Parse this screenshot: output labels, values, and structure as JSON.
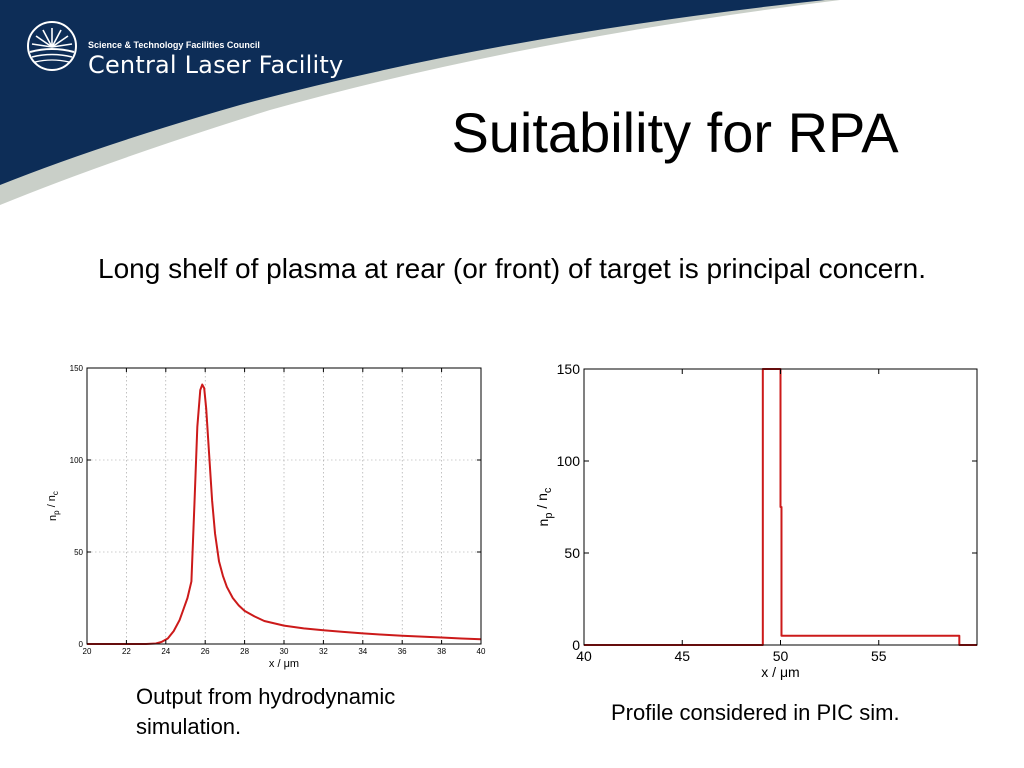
{
  "banner": {
    "council": "Science & Technology Facilities Council",
    "facility": "Central Laser Facility",
    "colors": {
      "navy": "#0d2d57",
      "grey": "#c9cfc8",
      "logo": "#ffffff"
    }
  },
  "slide": {
    "title": "Suitability for RPA",
    "body": "Long shelf of plasma at rear (or front) of target is principal concern."
  },
  "captions": {
    "hydro": "Output from hydrodynamic simulation.",
    "pic": "Profile considered in PIC sim."
  },
  "chart_data": [
    {
      "id": "hydro",
      "type": "line",
      "xlabel": "x / μm",
      "ylabel_base": "n",
      "ylabel_sub1": "p",
      "ylabel_mid": " / n",
      "ylabel_sub2": "c",
      "xlim": [
        20,
        40
      ],
      "ylim": [
        0,
        150
      ],
      "xticks": [
        20,
        22,
        24,
        26,
        28,
        30,
        32,
        34,
        36,
        38,
        40
      ],
      "yticks": [
        0,
        50,
        100,
        150
      ],
      "grid": true,
      "line_color": "#cc1a1a",
      "series": [
        {
          "x": [
            20,
            23,
            23.5,
            23.8,
            24.1,
            24.4,
            24.7,
            24.9,
            25.1,
            25.3,
            25.45,
            25.6,
            25.75,
            25.85,
            25.95,
            26.05,
            26.2,
            26.35,
            26.5,
            26.7,
            26.9,
            27.1,
            27.4,
            27.7,
            28,
            28.5,
            29,
            30,
            31,
            32,
            33,
            34,
            35,
            36,
            37,
            38,
            39,
            40
          ],
          "y": [
            0,
            0,
            0.3,
            1.2,
            3,
            7,
            13,
            19,
            25,
            34,
            75,
            118,
            138,
            141,
            139,
            128,
            103,
            78,
            60,
            45,
            37,
            31,
            25,
            21,
            18,
            15,
            12.5,
            10,
            8.5,
            7.5,
            6.6,
            5.8,
            5.1,
            4.5,
            4,
            3.5,
            3,
            2.6
          ]
        }
      ]
    },
    {
      "id": "pic",
      "type": "line",
      "xlabel": "x / μm",
      "ylabel_base": "n",
      "ylabel_sub1": "p",
      "ylabel_mid": " / n",
      "ylabel_sub2": "c",
      "xlim": [
        40,
        60
      ],
      "ylim": [
        0,
        150
      ],
      "xticks": [
        40,
        45,
        50,
        55
      ],
      "yticks": [
        0,
        50,
        100,
        150
      ],
      "grid": false,
      "line_color": "#cc1a1a",
      "series": [
        {
          "x": [
            40,
            49.1,
            49.1,
            49.15,
            49.9,
            50,
            50,
            50.05,
            50.05,
            59.1,
            59.1,
            60
          ],
          "y": [
            0,
            0,
            150,
            150,
            150,
            150,
            75,
            75,
            5,
            5,
            0,
            0
          ]
        }
      ]
    }
  ]
}
